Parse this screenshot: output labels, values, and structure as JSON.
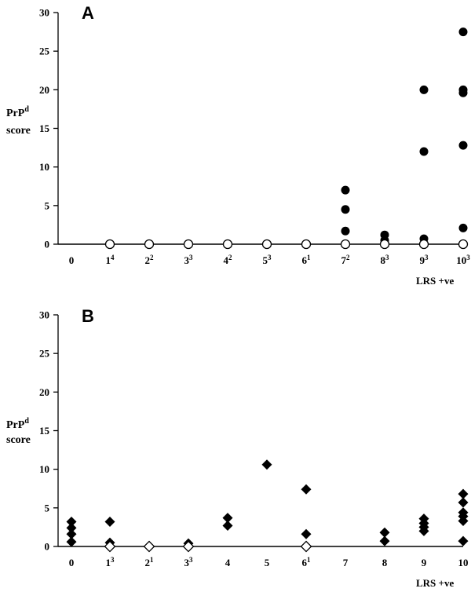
{
  "chart_data": [
    {
      "type": "scatter",
      "panel_label": "A",
      "ylabel": "PrP",
      "ylabel_sup": "d",
      "ylabel_line2": "score",
      "xlabel": "LRS +ve",
      "ylim": [
        0,
        30
      ],
      "yticks": [
        "0",
        "5",
        "10",
        "15",
        "20",
        "25",
        "30"
      ],
      "x_ticks": [
        {
          "base": "0",
          "sup": ""
        },
        {
          "base": "1",
          "sup": "4"
        },
        {
          "base": "2",
          "sup": "2"
        },
        {
          "base": "3",
          "sup": "3"
        },
        {
          "base": "4",
          "sup": "2"
        },
        {
          "base": "5",
          "sup": "3"
        },
        {
          "base": "6",
          "sup": "1"
        },
        {
          "base": "7",
          "sup": "2"
        },
        {
          "base": "8",
          "sup": "3"
        },
        {
          "base": "9",
          "sup": "3"
        },
        {
          "base": "10",
          "sup": "3"
        }
      ],
      "series": [
        {
          "marker": "filled-circle",
          "color": "#000000",
          "points": [
            [
              7,
              7.0
            ],
            [
              7,
              4.5
            ],
            [
              7,
              1.7
            ],
            [
              8,
              1.2
            ],
            [
              8,
              0.5
            ],
            [
              9,
              20.0
            ],
            [
              9,
              12.0
            ],
            [
              9,
              0.7
            ],
            [
              10,
              27.5
            ],
            [
              10,
              20.0
            ],
            [
              10,
              19.6
            ],
            [
              10,
              12.8
            ],
            [
              10,
              2.1
            ]
          ]
        },
        {
          "marker": "open-circle",
          "color": "#ffffff",
          "points": [
            [
              1,
              0
            ],
            [
              2,
              0
            ],
            [
              3,
              0
            ],
            [
              4,
              0
            ],
            [
              5,
              0
            ],
            [
              6,
              0
            ],
            [
              7,
              0
            ],
            [
              8,
              0
            ],
            [
              9,
              0
            ],
            [
              10,
              0
            ]
          ]
        }
      ]
    },
    {
      "type": "scatter",
      "panel_label": "B",
      "ylabel": "PrP",
      "ylabel_sup": "d",
      "ylabel_line2": "score",
      "xlabel": "LRS +ve",
      "ylim": [
        0,
        30
      ],
      "yticks": [
        "0",
        "5",
        "10",
        "15",
        "20",
        "25",
        "30"
      ],
      "x_ticks": [
        {
          "base": "0",
          "sup": ""
        },
        {
          "base": "1",
          "sup": "3"
        },
        {
          "base": "2",
          "sup": "1"
        },
        {
          "base": "3",
          "sup": "3"
        },
        {
          "base": "4",
          "sup": ""
        },
        {
          "base": "5",
          "sup": ""
        },
        {
          "base": "6",
          "sup": "1"
        },
        {
          "base": "7",
          "sup": ""
        },
        {
          "base": "8",
          "sup": ""
        },
        {
          "base": "9",
          "sup": ""
        },
        {
          "base": "10",
          "sup": ""
        }
      ],
      "series": [
        {
          "marker": "filled-diamond",
          "color": "#000000",
          "points": [
            [
              0,
              3.2
            ],
            [
              0,
              2.4
            ],
            [
              0,
              1.6
            ],
            [
              0,
              0.6
            ],
            [
              1,
              3.2
            ],
            [
              1,
              0.5
            ],
            [
              3,
              0.4
            ],
            [
              4,
              3.7
            ],
            [
              4,
              2.7
            ],
            [
              5,
              10.6
            ],
            [
              6,
              7.4
            ],
            [
              6,
              1.6
            ],
            [
              8,
              1.8
            ],
            [
              8,
              0.7
            ],
            [
              9,
              3.6
            ],
            [
              9,
              3.0
            ],
            [
              9,
              2.5
            ],
            [
              9,
              2.0
            ],
            [
              10,
              6.8
            ],
            [
              10,
              5.7
            ],
            [
              10,
              4.4
            ],
            [
              10,
              3.9
            ],
            [
              10,
              3.3
            ],
            [
              10,
              0.7
            ]
          ]
        },
        {
          "marker": "open-diamond",
          "color": "#ffffff",
          "points": [
            [
              1,
              0
            ],
            [
              2,
              0
            ],
            [
              3,
              0
            ],
            [
              6,
              0
            ]
          ]
        }
      ]
    }
  ]
}
